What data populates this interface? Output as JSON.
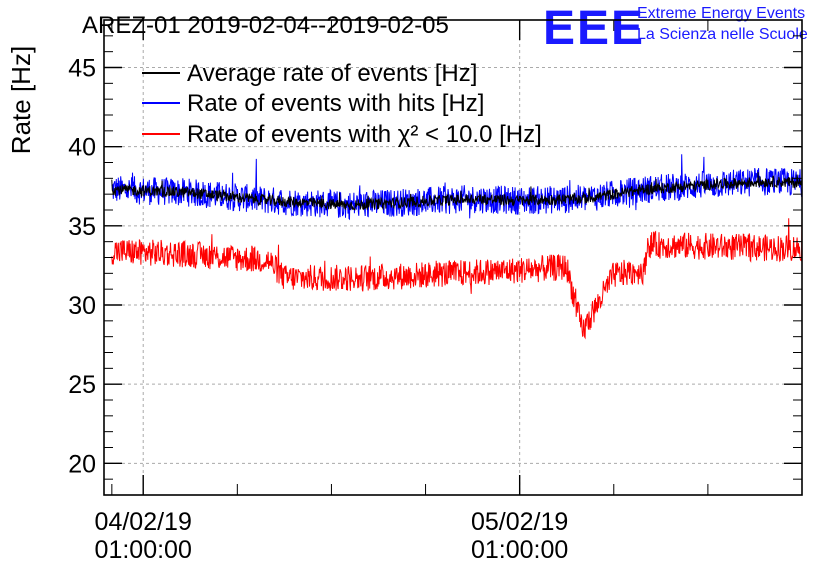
{
  "chart_data": {
    "type": "line",
    "title": "AREZ-01 2019-02-04--2019-02-05",
    "ylabel": "Rate [Hz]",
    "xlabel": "",
    "ylim": [
      18,
      48
    ],
    "y_ticks": [
      20,
      25,
      30,
      35,
      40,
      45
    ],
    "y_tick_labels": [
      "20",
      "25",
      "30",
      "35",
      "40",
      "45"
    ],
    "x_range_hours": [
      -2.5,
      42
    ],
    "x_ticks": [
      {
        "hour": 0,
        "date": "04/02/19",
        "time": "01:00:00"
      },
      {
        "hour": 24,
        "date": "05/02/19",
        "time": "01:00:00"
      }
    ],
    "x_minor_tick_hours": [
      -2,
      6,
      12,
      18,
      30,
      36,
      42
    ],
    "grid": true,
    "legend_position": "top-left",
    "series": [
      {
        "name": "Average rate of events [Hz]",
        "color": "#000000",
        "hours": [
          -2,
          3,
          8,
          13,
          17,
          21,
          24,
          28,
          32,
          36,
          40,
          42
        ],
        "values": [
          37.3,
          37.1,
          36.6,
          36.3,
          36.5,
          36.7,
          36.6,
          36.7,
          37.3,
          37.6,
          37.8,
          37.7
        ]
      },
      {
        "name": "Rate of events with hits [Hz]",
        "color": "#0000ff",
        "hours": [
          -2,
          3,
          8,
          13,
          17,
          21,
          24,
          28,
          32,
          36,
          40,
          42
        ],
        "values": [
          37.3,
          37.1,
          36.6,
          36.3,
          36.5,
          36.7,
          36.6,
          36.7,
          37.3,
          37.6,
          37.8,
          37.7
        ]
      },
      {
        "name": "Rate of events with χ² < 10.0 [Hz]",
        "color": "#ff0000",
        "hours": [
          -2,
          3,
          8,
          9,
          14,
          20,
          24,
          27,
          28,
          30,
          32,
          32.1,
          36,
          40,
          42
        ],
        "values": [
          33.4,
          33.2,
          32.8,
          31.7,
          31.7,
          32.0,
          32.2,
          32.4,
          28.3,
          31.9,
          32.2,
          33.8,
          33.7,
          33.6,
          33.6
        ]
      }
    ]
  },
  "logo": {
    "mark": "EEE",
    "line1": "Extreme Energy Events",
    "line2": "La Scienza nelle Scuole"
  }
}
